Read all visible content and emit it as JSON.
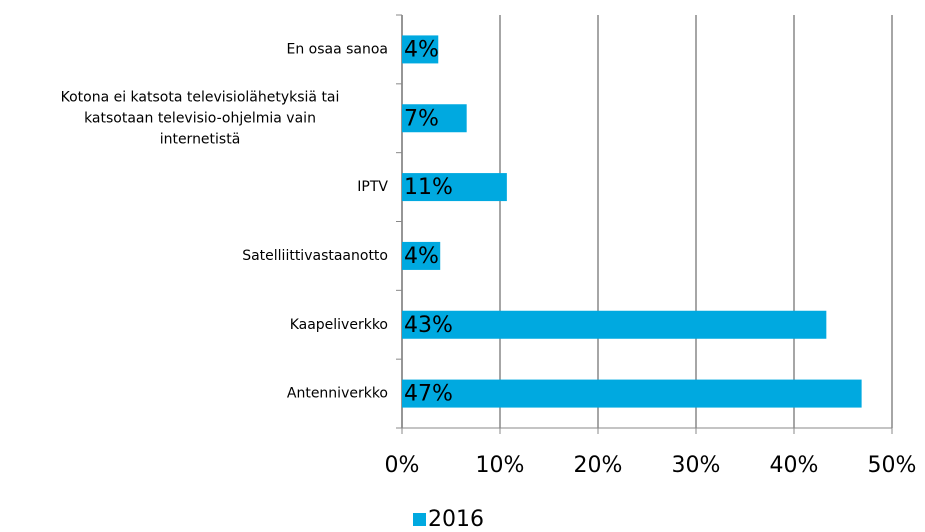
{
  "chart_data": {
    "type": "bar",
    "orientation": "horizontal",
    "categories": [
      "En osaa sanoa",
      "Kotona ei katsota televisiolähetyksiä tai katsotaan televisio-ohjelmia vain internetistä",
      "IPTV",
      "Satelliittivastaanotto",
      "Kaapeliverkko",
      "Antenniverkko"
    ],
    "series": [
      {
        "name": "2016",
        "color": "#00a9e0",
        "values": [
          3.7,
          6.6,
          10.7,
          3.9,
          43.3,
          46.9
        ],
        "value_labels": [
          "4%",
          "7%",
          "11%",
          "4%",
          "43%",
          "47%"
        ]
      }
    ],
    "xlim": [
      0,
      50
    ],
    "xticks": [
      {
        "value": 0,
        "label": "0%"
      },
      {
        "value": 10,
        "label": "10%"
      },
      {
        "value": 20,
        "label": "20%"
      },
      {
        "value": 30,
        "label": "30%"
      },
      {
        "value": 40,
        "label": "40%"
      },
      {
        "value": 50,
        "label": "50%"
      }
    ],
    "grid": true,
    "legend": "bottom"
  }
}
